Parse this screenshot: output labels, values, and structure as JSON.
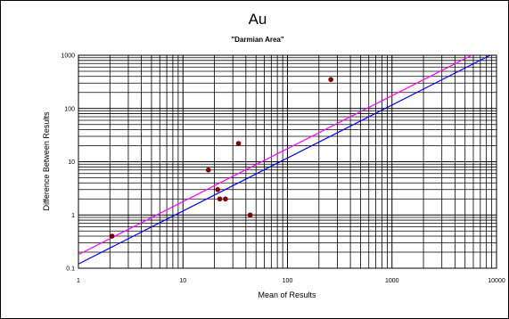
{
  "chart_data": {
    "type": "scatter",
    "title": "Au",
    "subtitle": "\"Darmian Area\"",
    "xlabel": "Mean of Results",
    "ylabel": "Difference Between Results",
    "xscale": "log",
    "yscale": "log",
    "xlim": [
      1,
      10000
    ],
    "ylim": [
      0.1,
      1000
    ],
    "grid": true,
    "x_ticks": [
      "1",
      "10",
      "100",
      "1000",
      "10000"
    ],
    "y_ticks": [
      "0.1",
      "1",
      "10",
      "100",
      "1000"
    ],
    "points": [
      {
        "x": 2.1,
        "y": 0.4
      },
      {
        "x": 17.5,
        "y": 7.0
      },
      {
        "x": 21.5,
        "y": 3.0
      },
      {
        "x": 22.5,
        "y": 2.0
      },
      {
        "x": 25.5,
        "y": 2.0
      },
      {
        "x": 34.0,
        "y": 22.0
      },
      {
        "x": 44.0,
        "y": 1.0
      },
      {
        "x": 260.0,
        "y": 350.0
      }
    ],
    "lines": [
      {
        "x": [
          1,
          5800
        ],
        "y": [
          0.18,
          1000
        ],
        "color": "#ff00ff"
      },
      {
        "x": [
          1,
          8700
        ],
        "y": [
          0.12,
          1000
        ],
        "color": "#0000ff"
      }
    ],
    "point_color": "#800000"
  }
}
